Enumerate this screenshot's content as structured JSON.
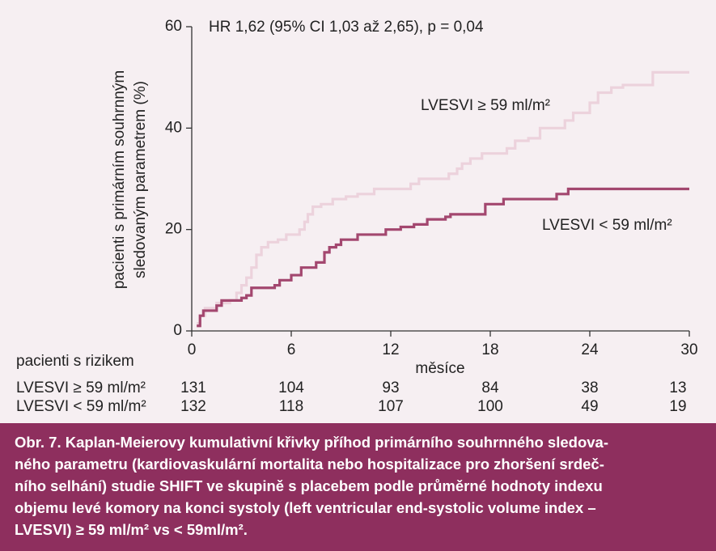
{
  "chart_data": {
    "type": "step",
    "annotation": "HR 1,62 (95% CI 1,03 až 2,65), p = 0,04",
    "y_label": [
      "pacienti s primárním souhrnným",
      "sledovaným parametrem (%)"
    ],
    "x_label": "měsíce",
    "xlim": [
      0,
      30
    ],
    "xticks": [
      0,
      6,
      12,
      18,
      24,
      30
    ],
    "ylim": [
      0,
      60
    ],
    "yticks": [
      0,
      20,
      40,
      60
    ],
    "series": [
      {
        "name": "LVESVI ≥ 59 ml/m²",
        "color": "#ecd2dc",
        "x": [
          0.3,
          0.5,
          0.8,
          1.5,
          2.3,
          2.7,
          3.0,
          3.3,
          3.6,
          3.9,
          4.2,
          4.6,
          5.2,
          5.7,
          6.5,
          6.8,
          7.0,
          7.3,
          7.8,
          8.5,
          9.3,
          10,
          11,
          13.2,
          13.7,
          15.5,
          16,
          16.3,
          16.8,
          17.5,
          19,
          19.5,
          20.3,
          21,
          22.5,
          23,
          24,
          24.5,
          25.3,
          26,
          27.8,
          30
        ],
        "values": [
          1.5,
          3,
          4.5,
          5.5,
          6,
          7.5,
          9,
          10.5,
          12.5,
          15,
          16.5,
          17.5,
          18,
          19,
          20,
          21.5,
          23,
          24.5,
          25,
          26,
          26.5,
          27,
          28,
          29,
          30,
          31,
          32,
          33,
          34,
          35,
          36,
          37.5,
          38,
          40,
          41.5,
          43,
          45,
          47,
          48,
          48.5,
          51,
          51
        ]
      },
      {
        "name": "LVESVI < 59 ml/m²",
        "color": "#a3476f",
        "x": [
          0.3,
          0.5,
          0.7,
          1.5,
          1.8,
          3.0,
          3.3,
          3.6,
          5.0,
          5.3,
          6.0,
          6.6,
          7.5,
          8.0,
          8.3,
          8.7,
          9.0,
          10.0,
          11.7,
          12.6,
          13.4,
          14.2,
          15.3,
          15.6,
          17.7,
          18.8,
          22.0,
          22.7,
          30
        ],
        "values": [
          1,
          3,
          4,
          5,
          6,
          6.5,
          7,
          8.5,
          9,
          10,
          11,
          12.5,
          13.5,
          15.5,
          16.5,
          17,
          18,
          19,
          20,
          20.5,
          21,
          22,
          22.5,
          23,
          25,
          26,
          27,
          28,
          28
        ]
      }
    ],
    "at_risk": {
      "title": "pacienti s rizikem",
      "rows": [
        {
          "label": "LVESVI ≥ 59 ml/m²",
          "values": [
            131,
            104,
            93,
            84,
            38,
            13
          ]
        },
        {
          "label": "LVESVI < 59 ml/m²",
          "values": [
            132,
            118,
            107,
            100,
            49,
            19
          ]
        }
      ]
    }
  },
  "caption": [
    "Obr. 7. Kaplan-Meierovy kumulativní křivky příhod primárního souhrnného sledova-",
    "ného parametru (kardiovaskulární mortalita nebo hospitalizace pro zhoršení srdeč-",
    "ního selhání) studie SHIFT ve skupině s placebem podle průměrné hodnoty indexu",
    "objemu levé komory na konci systoly (left ventricular end-systolic volume index –",
    "LVESVI) ≥ 59 ml/m² vs < 59ml/m²."
  ]
}
